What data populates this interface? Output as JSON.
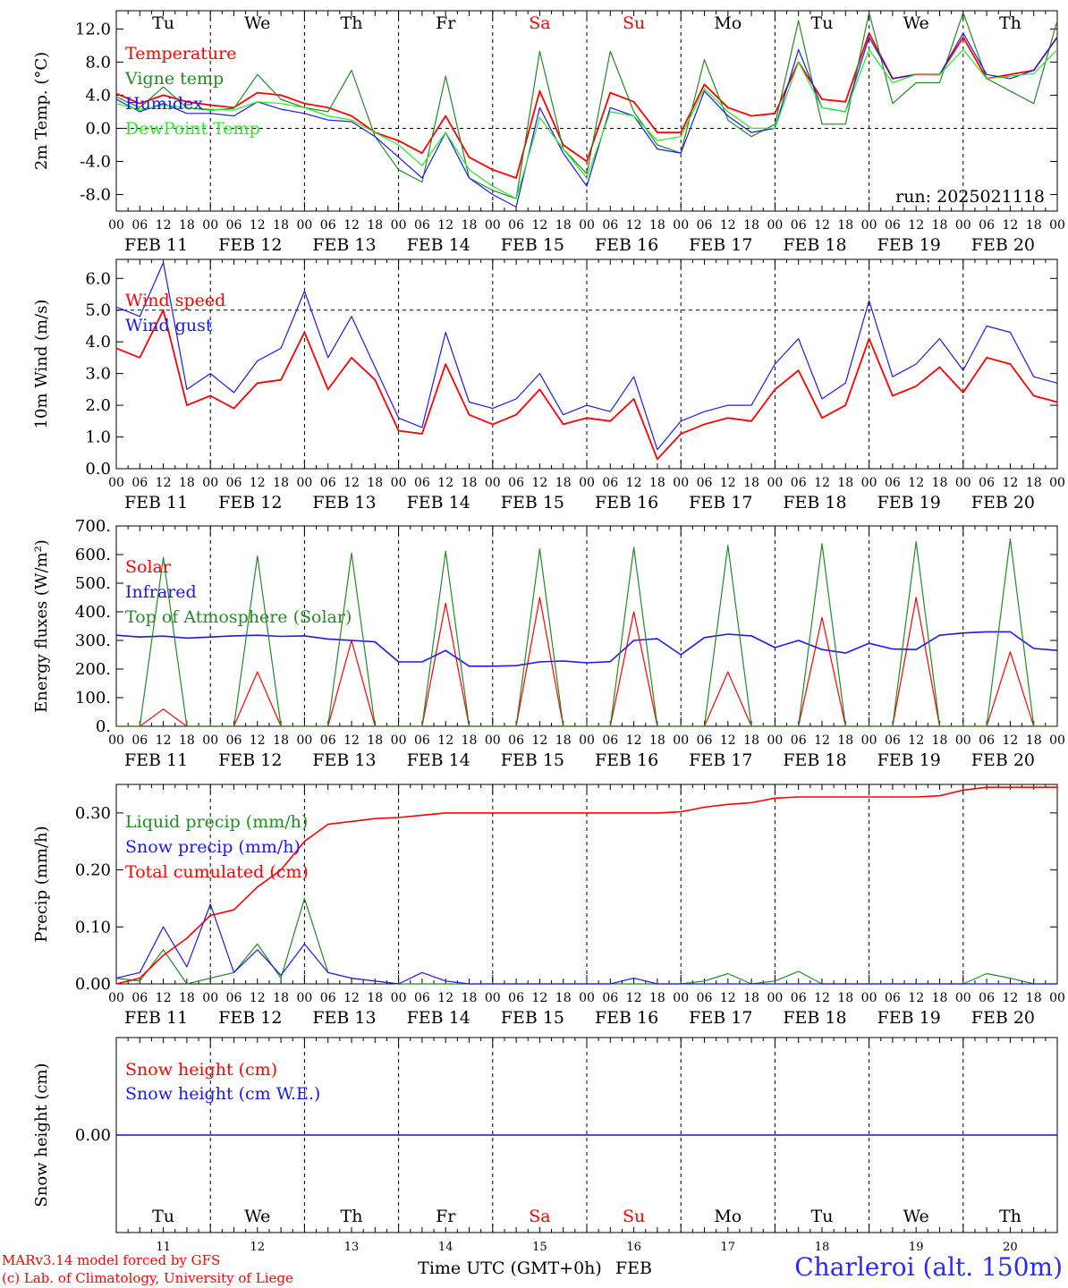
{
  "credits": {
    "line1": "MARv3.14 model forced by GFS",
    "line2": "(c) Lab. of Climatology, University of Liege"
  },
  "station": "Charleroi (alt. 150m)",
  "xaxis_title": "Time UTC (GMT+0h)",
  "month": "FEB",
  "colors": {
    "red": "#ff0000",
    "green": "#228b22",
    "blue": "#1a1aee",
    "lightgreen": "#22ee22",
    "weekend": "#ff0000",
    "weekday": "#000000"
  },
  "days": [
    {
      "dow": "Tu",
      "date": "11",
      "label": "FEB 11",
      "weekend": false
    },
    {
      "dow": "We",
      "date": "12",
      "label": "FEB 12",
      "weekend": false
    },
    {
      "dow": "Th",
      "date": "13",
      "label": "FEB 13",
      "weekend": false
    },
    {
      "dow": "Fr",
      "date": "14",
      "label": "FEB 14",
      "weekend": false
    },
    {
      "dow": "Sa",
      "date": "15",
      "label": "FEB 15",
      "weekend": true
    },
    {
      "dow": "Su",
      "date": "16",
      "label": "FEB 16",
      "weekend": true
    },
    {
      "dow": "Mo",
      "date": "17",
      "label": "FEB 17",
      "weekend": false
    },
    {
      "dow": "Tu",
      "date": "18",
      "label": "FEB 18",
      "weekend": false
    },
    {
      "dow": "We",
      "date": "19",
      "label": "FEB 19",
      "weekend": false
    },
    {
      "dow": "Th",
      "date": "20",
      "label": "FEB 20",
      "weekend": false
    }
  ],
  "hour_ticks": [
    "00",
    "06",
    "12",
    "18"
  ],
  "chart_data": [
    {
      "type": "line",
      "ylabel": "2m Temp. (°C)",
      "ylim": [
        -10,
        14.2
      ],
      "yticks": [
        -8,
        -4,
        0,
        4,
        8,
        12
      ],
      "ytick_labels": [
        "-8.0",
        "-4.0",
        "0.0",
        "4.0",
        "8.0",
        "12.0"
      ],
      "zero_line": 0,
      "annotation": "run: 2025021118",
      "show_dow_top": true,
      "x": [
        0,
        6,
        12,
        18,
        24,
        30,
        36,
        42,
        48,
        54,
        60,
        66,
        72,
        78,
        84,
        90,
        96,
        102,
        108,
        114,
        120,
        126,
        132,
        138,
        144,
        150,
        156,
        162,
        168,
        174,
        180,
        186,
        192,
        198,
        204,
        210,
        216,
        222,
        228,
        234,
        240
      ],
      "series": [
        {
          "name": "Temperature",
          "color": "red",
          "width": 1.8,
          "values": [
            4.2,
            3.0,
            4.0,
            3.2,
            2.8,
            2.5,
            4.3,
            4.0,
            3.0,
            2.5,
            1.5,
            -0.5,
            -1.5,
            -3.0,
            1.5,
            -3.5,
            -5.0,
            -6.0,
            4.5,
            -2.0,
            -4.0,
            4.3,
            3.2,
            -0.5,
            -0.5,
            5.3,
            2.5,
            1.5,
            1.8,
            8.0,
            3.5,
            3.2,
            11.5,
            6.0,
            6.5,
            6.5,
            11.0,
            6.0,
            6.5,
            7.0,
            11.0
          ]
        },
        {
          "name": "Vigne temp",
          "color": "green",
          "width": 1.2,
          "values": [
            3.8,
            2.5,
            5.0,
            2.5,
            2.2,
            2.4,
            6.5,
            3.5,
            2.5,
            2.0,
            7.0,
            -1.0,
            -5.0,
            -6.5,
            6.3,
            -6.0,
            -7.5,
            -8.5,
            9.3,
            -2.5,
            -5.5,
            9.3,
            2.0,
            -2.0,
            -3.0,
            8.3,
            1.0,
            -1.0,
            0.5,
            13.0,
            0.5,
            0.5,
            14.0,
            3.0,
            5.5,
            5.5,
            14.0,
            6.0,
            4.5,
            3.0,
            13.0
          ]
        },
        {
          "name": "Humidex",
          "color": "blue",
          "width": 1.2,
          "values": [
            3.5,
            2.0,
            3.0,
            1.8,
            1.8,
            1.5,
            3.2,
            2.3,
            1.8,
            1.0,
            0.8,
            -1.0,
            -3.5,
            -6.0,
            -0.5,
            -6.0,
            -8.0,
            -9.5,
            2.5,
            -3.0,
            -7.0,
            2.5,
            1.5,
            -2.5,
            -3.0,
            4.5,
            1.5,
            -0.5,
            0.0,
            9.5,
            2.5,
            2.0,
            11.0,
            6.0,
            6.5,
            6.5,
            11.5,
            6.5,
            6.0,
            7.0,
            11.0
          ]
        },
        {
          "name": "DewPoint Temp",
          "color": "lightgreen",
          "width": 1.2,
          "values": [
            3.0,
            2.2,
            2.8,
            2.5,
            2.3,
            2.2,
            3.2,
            3.0,
            2.5,
            1.5,
            1.0,
            -0.5,
            -2.0,
            -4.5,
            -0.5,
            -5.0,
            -7.0,
            -8.5,
            1.3,
            -2.5,
            -6.0,
            2.0,
            1.5,
            -1.5,
            -1.0,
            4.8,
            2.0,
            0.0,
            0.0,
            8.0,
            2.5,
            2.0,
            9.5,
            5.5,
            6.5,
            6.5,
            9.5,
            6.0,
            6.3,
            6.6,
            9.5
          ]
        }
      ]
    },
    {
      "type": "line",
      "ylabel": "10m Wind (m/s)",
      "ylim": [
        0,
        6.6
      ],
      "yticks": [
        0,
        1,
        2,
        3,
        4,
        5,
        6
      ],
      "ytick_labels": [
        "0.0",
        "1.0",
        "2.0",
        "3.0",
        "4.0",
        "5.0",
        "6.0"
      ],
      "zero_line": 5,
      "x": [
        0,
        6,
        12,
        18,
        24,
        30,
        36,
        42,
        48,
        54,
        60,
        66,
        72,
        78,
        84,
        90,
        96,
        102,
        108,
        114,
        120,
        126,
        132,
        138,
        144,
        150,
        156,
        162,
        168,
        174,
        180,
        186,
        192,
        198,
        204,
        210,
        216,
        222,
        228,
        234,
        240
      ],
      "series": [
        {
          "name": "Wind speed",
          "color": "red",
          "width": 1.8,
          "values": [
            3.8,
            3.5,
            5.0,
            2.0,
            2.3,
            1.9,
            2.7,
            2.8,
            4.3,
            2.5,
            3.5,
            2.8,
            1.2,
            1.1,
            3.3,
            1.7,
            1.4,
            1.7,
            2.5,
            1.4,
            1.6,
            1.5,
            2.2,
            0.3,
            1.1,
            1.4,
            1.6,
            1.5,
            2.5,
            3.1,
            1.6,
            2.0,
            4.1,
            2.3,
            2.6,
            3.2,
            2.4,
            3.5,
            3.3,
            2.3,
            2.1
          ]
        },
        {
          "name": "Wind gust",
          "color": "blue",
          "width": 1.2,
          "values": [
            5.1,
            4.8,
            6.5,
            2.5,
            3.0,
            2.4,
            3.4,
            3.8,
            5.6,
            3.5,
            4.8,
            3.2,
            1.6,
            1.3,
            4.3,
            2.1,
            1.9,
            2.2,
            3.0,
            1.7,
            2.0,
            1.8,
            2.9,
            0.6,
            1.5,
            1.8,
            2.0,
            2.0,
            3.3,
            4.1,
            2.2,
            2.7,
            5.3,
            2.9,
            3.3,
            4.1,
            3.1,
            4.5,
            4.3,
            2.9,
            2.7
          ]
        }
      ]
    },
    {
      "type": "line",
      "ylabel": "Energy fluxes (W/m²)",
      "ylim": [
        0,
        700
      ],
      "yticks": [
        0,
        100,
        200,
        300,
        400,
        500,
        600,
        700
      ],
      "ytick_labels": [
        "0.",
        "100.",
        "200.",
        "300.",
        "400.",
        "500.",
        "600.",
        "700."
      ],
      "x": [
        0,
        6,
        12,
        18,
        24,
        30,
        36,
        42,
        48,
        54,
        60,
        66,
        72,
        78,
        84,
        90,
        96,
        102,
        108,
        114,
        120,
        126,
        132,
        138,
        144,
        150,
        156,
        162,
        168,
        174,
        180,
        186,
        192,
        198,
        204,
        210,
        216,
        222,
        228,
        234,
        240
      ],
      "series": [
        {
          "name": "Solar",
          "color": "red",
          "width": 1.2,
          "values": [
            0,
            0,
            60,
            0,
            0,
            0,
            190,
            0,
            0,
            0,
            300,
            0,
            0,
            0,
            430,
            0,
            0,
            0,
            450,
            0,
            0,
            0,
            400,
            0,
            0,
            0,
            190,
            0,
            0,
            0,
            380,
            0,
            0,
            0,
            450,
            0,
            0,
            0,
            260,
            0,
            0
          ]
        },
        {
          "name": "Infrared",
          "color": "blue",
          "width": 1.6,
          "values": [
            318,
            312,
            315,
            308,
            312,
            316,
            318,
            314,
            316,
            305,
            300,
            295,
            225,
            225,
            265,
            210,
            210,
            212,
            225,
            228,
            222,
            226,
            300,
            306,
            250,
            310,
            322,
            316,
            275,
            300,
            268,
            256,
            290,
            270,
            268,
            318,
            326,
            330,
            330,
            272,
            265
          ]
        },
        {
          "name": "Top of Atmosphere (Solar)",
          "color": "green",
          "width": 1.2,
          "values": [
            0,
            0,
            590,
            0,
            0,
            0,
            595,
            0,
            0,
            0,
            605,
            0,
            0,
            0,
            612,
            0,
            0,
            0,
            620,
            0,
            0,
            0,
            625,
            0,
            0,
            0,
            632,
            0,
            0,
            0,
            638,
            0,
            0,
            0,
            645,
            0,
            0,
            0,
            655,
            0,
            0
          ]
        }
      ]
    },
    {
      "type": "line",
      "ylabel": "Precip (mm/h)",
      "ylim": [
        0,
        0.35
      ],
      "yticks": [
        0,
        0.1,
        0.2,
        0.3
      ],
      "ytick_labels": [
        "0.00",
        "0.10",
        "0.20",
        "0.30"
      ],
      "x": [
        0,
        6,
        12,
        18,
        24,
        30,
        36,
        42,
        48,
        54,
        60,
        66,
        72,
        78,
        84,
        90,
        96,
        102,
        108,
        114,
        120,
        126,
        132,
        138,
        144,
        150,
        156,
        162,
        168,
        174,
        180,
        186,
        192,
        198,
        204,
        210,
        216,
        222,
        228,
        234,
        240
      ],
      "series": [
        {
          "name": "Liquid precip (mm/h)",
          "color": "green",
          "width": 1.2,
          "values": [
            0.01,
            0.005,
            0.06,
            0.0,
            0.01,
            0.02,
            0.07,
            0.01,
            0.15,
            0.02,
            0.01,
            0.005,
            0.0,
            0.0,
            0.0,
            0.0,
            0.0,
            0.0,
            0.0,
            0.0,
            0.0,
            0.0,
            0.0,
            0.0,
            0.0,
            0.005,
            0.018,
            0.0,
            0.005,
            0.022,
            0.0,
            0.0,
            0.0,
            0.0,
            0.0,
            0.0,
            0.0,
            0.018,
            0.01,
            0.0,
            0.0
          ]
        },
        {
          "name": "Snow precip (mm/h)",
          "color": "blue",
          "width": 1.2,
          "values": [
            0.01,
            0.02,
            0.1,
            0.03,
            0.14,
            0.02,
            0.06,
            0.015,
            0.07,
            0.02,
            0.01,
            0.005,
            0.0,
            0.02,
            0.005,
            0.0,
            0.0,
            0.0,
            0.0,
            0.0,
            0.0,
            0.0,
            0.01,
            0.0,
            0.0,
            0.0,
            0.0,
            0.0,
            0.0,
            0.0,
            0.0,
            0.0,
            0.0,
            0.0,
            0.0,
            0.0,
            0.0,
            0.0,
            0.0,
            0.0,
            0.0
          ]
        },
        {
          "name": "Total cumulated (cm)",
          "color": "red",
          "width": 1.6,
          "values": [
            0.0,
            0.01,
            0.05,
            0.08,
            0.12,
            0.13,
            0.17,
            0.2,
            0.25,
            0.28,
            0.285,
            0.29,
            0.292,
            0.296,
            0.3,
            0.3,
            0.3,
            0.3,
            0.3,
            0.3,
            0.3,
            0.3,
            0.3,
            0.3,
            0.302,
            0.31,
            0.315,
            0.318,
            0.326,
            0.328,
            0.328,
            0.328,
            0.328,
            0.328,
            0.328,
            0.33,
            0.34,
            0.345,
            0.345,
            0.345,
            0.345
          ]
        }
      ]
    },
    {
      "type": "line",
      "ylabel": "Snow height (cm)",
      "ylim": [
        -1,
        1
      ],
      "yticks": [
        0
      ],
      "ytick_labels": [
        "0.00"
      ],
      "show_dow_bottom": true,
      "x": [
        0,
        240
      ],
      "series": [
        {
          "name": "Snow height (cm)",
          "color": "red",
          "width": 1.4,
          "values": [
            0,
            0
          ]
        },
        {
          "name": "Snow height (cm W.E.)",
          "color": "blue",
          "width": 1.2,
          "values": [
            0,
            0
          ]
        }
      ]
    }
  ]
}
